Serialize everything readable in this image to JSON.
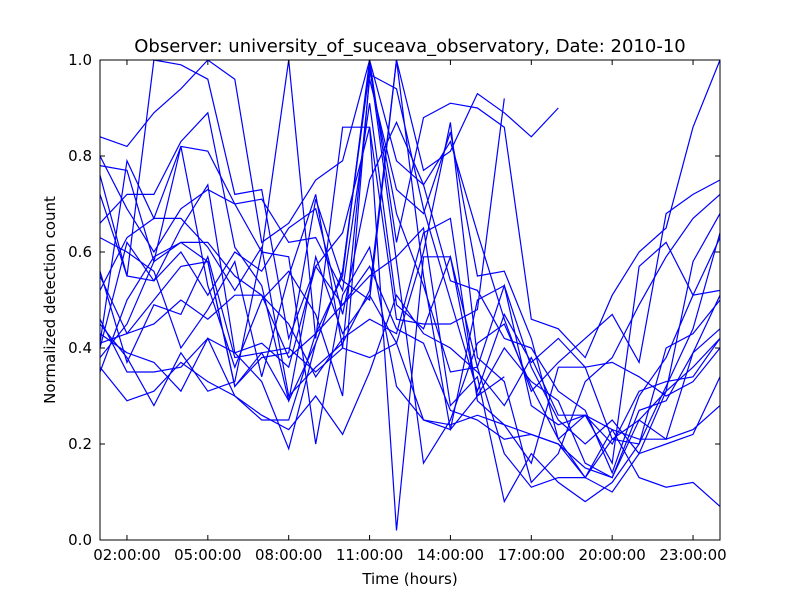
{
  "chart_data": {
    "type": "line",
    "title": "Observer: university_of_suceava_observatory, Date: 2010-10",
    "xlabel": "Time (hours)",
    "ylabel": "Normalized detection count",
    "x_tick_labels": [
      "02:00:00",
      "05:00:00",
      "08:00:00",
      "11:00:00",
      "14:00:00",
      "17:00:00",
      "20:00:00",
      "23:00:00"
    ],
    "x_tick_hours": [
      2,
      5,
      8,
      11,
      14,
      17,
      20,
      23
    ],
    "xlim": [
      1,
      24
    ],
    "y_tick_labels": [
      "0.0",
      "0.2",
      "0.4",
      "0.6",
      "0.8",
      "1.0"
    ],
    "y_tick_values": [
      0,
      0.2,
      0.4,
      0.6,
      0.8,
      1.0
    ],
    "ylim": [
      0,
      1
    ],
    "grid": false,
    "line_color": "#0000ff",
    "x_hours": [
      1,
      2,
      3,
      4,
      5,
      6,
      7,
      8,
      9,
      10,
      11,
      12,
      13,
      14,
      15,
      16,
      17,
      18,
      19,
      20,
      21,
      22,
      23,
      24
    ],
    "series": [
      {
        "values": [
          0.84,
          0.82,
          0.89,
          0.94,
          1.0,
          0.96,
          0.62,
          0.66,
          0.75,
          0.79,
          1.0,
          0.62,
          0.88,
          0.91,
          0.9,
          0.86,
          0.46,
          0.44,
          0.38,
          0.51,
          0.6,
          0.65,
          0.86,
          1.0
        ]
      },
      {
        "values": [
          0.78,
          0.77,
          0.58,
          0.62,
          0.62,
          0.55,
          0.51,
          0.38,
          0.43,
          0.55,
          1.0,
          0.79,
          0.74,
          0.54,
          0.52,
          0.42,
          0.4,
          0.31,
          0.27,
          0.14,
          0.3,
          0.38,
          0.51,
          0.52
        ]
      },
      {
        "values": [
          0.66,
          0.72,
          0.72,
          0.83,
          0.89,
          0.61,
          0.53,
          0.29,
          0.41,
          0.56,
          0.98,
          0.68,
          0.53,
          0.35,
          0.36,
          0.18,
          0.11,
          0.13,
          0.13,
          0.21,
          0.25,
          0.31,
          0.36,
          0.42
        ]
      },
      {
        "values": [
          0.38,
          0.45,
          0.58,
          0.82,
          0.53,
          0.36,
          0.5,
          0.56,
          0.47,
          0.3,
          0.97,
          0.94,
          0.69,
          0.5,
          0.31,
          0.47,
          0.37,
          0.42,
          0.36,
          0.21,
          0.2,
          0.32,
          0.44,
          0.64
        ]
      },
      {
        "values": [
          0.43,
          0.39,
          0.37,
          0.31,
          0.42,
          0.3,
          0.25,
          0.25,
          0.43,
          0.49,
          0.57,
          0.44,
          0.41,
          0.27,
          0.25,
          0.21,
          0.22,
          0.2,
          0.13,
          0.23,
          0.21,
          0.21,
          0.39,
          0.44
        ]
      },
      {
        "values": [
          0.52,
          0.63,
          0.67,
          0.67,
          0.61,
          0.52,
          0.61,
          0.3,
          0.36,
          0.41,
          0.52,
          1.0,
          0.55,
          0.23,
          0.3,
          0.4,
          0.33,
          0.29,
          0.16,
          0.13,
          0.25,
          0.21,
          0.23,
          0.28
        ]
      },
      {
        "values": [
          0.41,
          0.43,
          0.45,
          0.5,
          0.46,
          0.51,
          0.51,
          0.45,
          0.34,
          0.42,
          0.46,
          0.43,
          0.64,
          0.67,
          0.29,
          0.24,
          0.22,
          0.2,
          0.15,
          0.13,
          0.27,
          0.29,
          0.39,
          0.51
        ]
      },
      {
        "values": [
          0.56,
          0.37,
          0.49,
          0.47,
          0.59,
          0.38,
          0.39,
          0.4,
          0.35,
          0.4,
          0.38,
          0.41,
          0.25,
          0.24,
          0.26,
          0.24,
          0.16,
          0.36,
          0.36,
          0.37,
          0.34,
          0.3,
          0.33,
          0.4
        ]
      },
      {
        "values": [
          0.36,
          0.29,
          0.31,
          0.37,
          0.33,
          0.3,
          0.26,
          0.23,
          0.3,
          0.22,
          0.35,
          0.51,
          0.43,
          0.4,
          0.35,
          0.28,
          0.38,
          0.26,
          0.26,
          0.2,
          0.31,
          0.33,
          0.34,
          0.42
        ]
      },
      {
        "values": [
          0.46,
          0.35,
          0.35,
          0.36,
          0.42,
          0.39,
          0.33,
          0.19,
          0.41,
          0.56,
          0.99,
          0.58,
          0.16,
          0.25,
          0.41,
          0.45,
          0.32,
          0.21,
          0.13,
          0.1,
          0.18,
          0.2,
          0.22,
          0.34
        ]
      },
      {
        "values": [
          0.45,
          0.38,
          0.28,
          0.39,
          0.31,
          0.33,
          0.6,
          0.59,
          0.2,
          0.51,
          0.61,
          0.32,
          0.25,
          0.23,
          0.5,
          0.53,
          0.28,
          0.24,
          0.26,
          0.23,
          0.13,
          0.11,
          0.12,
          0.07
        ]
      },
      {
        "values": [
          0.76,
          0.55,
          0.54,
          0.65,
          0.74,
          0.39,
          0.41,
          0.36,
          0.57,
          0.49,
          0.55,
          0.59,
          0.65,
          0.28,
          0.34,
          0.08,
          0.18,
          0.12,
          0.08,
          0.12,
          0.2,
          0.4,
          0.43,
          0.5
        ]
      },
      {
        "values": [
          0.4,
          0.62,
          0.54,
          0.6,
          0.51,
          0.6,
          0.56,
          0.65,
          0.69,
          0.47,
          0.75,
          0.87,
          0.74,
          0.83,
          0.64,
          0.46,
          0.31,
          0.37,
          0.42,
          0.47,
          0.37,
          0.68,
          0.72,
          0.75
        ]
      },
      {
        "values": [
          0.55,
          0.43,
          0.5,
          0.57,
          0.58,
          0.32,
          0.39,
          0.29,
          0.59,
          0.43,
          0.51,
          0.41,
          0.6,
          0.87,
          0.38,
          0.33,
          0.12,
          0.18,
          0.33,
          0.38,
          0.49,
          0.59,
          0.67,
          0.72
        ]
      },
      {
        "values": [
          0.63,
          0.6,
          0.56,
          0.4,
          0.48,
          0.58,
          0.34,
          0.55,
          0.72,
          0.4,
          0.96,
          0.73,
          0.68,
          0.85,
          0.55,
          0.56,
          0.42,
          0.21,
          0.26,
          0.16,
          0.57,
          0.62,
          0.51,
          0.63
        ]
      },
      {
        "values": [
          0.41,
          0.79,
          0.67,
          0.82,
          0.81,
          0.7,
          0.71,
          0.62,
          0.63,
          0.52,
          0.91,
          0.49,
          0.44,
          0.59,
          0.36,
          0.53,
          0.36,
          0.25,
          0.2,
          0.25,
          0.18,
          0.31,
          0.58,
          0.68
        ]
      },
      {
        "values": [
          0.72,
          0.55,
          1.0,
          0.99,
          0.96,
          0.72,
          0.73,
          0.42,
          0.57,
          0.64,
          0.86,
          0.46,
          0.45,
          0.45,
          0.48,
          0.92
        ]
      },
      {
        "values": [
          0.8,
          0.69,
          0.6,
          0.69,
          0.73,
          0.7,
          0.6,
          1.0,
          0.42,
          0.86,
          0.86,
          0.02,
          0.59,
          0.59,
          0.3,
          0.34
        ]
      },
      {
        "values": [
          0.35,
          0.5,
          0.59,
          0.62,
          0.58,
          0.32,
          0.38,
          0.39,
          0.71,
          0.54,
          0.5,
          1.0,
          0.77,
          0.81,
          0.93,
          0.89,
          0.84,
          0.9
        ]
      }
    ]
  }
}
